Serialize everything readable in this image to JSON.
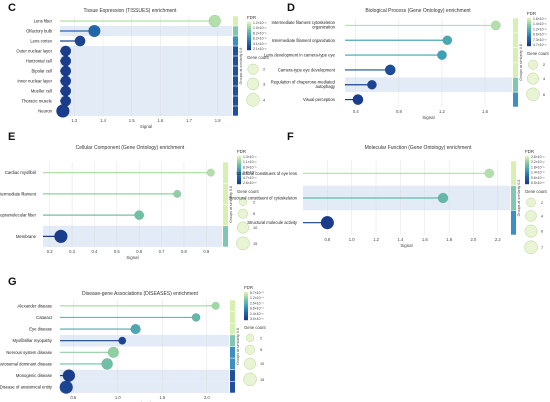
{
  "figure": {
    "scale_title": "FDR",
    "gene_count_title": "Gene count",
    "group_label": "Groups at similarity 0.8"
  },
  "chart_data": [
    {
      "letter": "C",
      "title": "Tissue Expression (TISSUES) enrichment",
      "type": "lollipop",
      "xlabel": "Signal",
      "xlim": [
        1.25,
        1.85
      ],
      "xticks": [
        "1.3",
        "1.4",
        "1.5",
        "1.6",
        "1.7",
        "1.8"
      ],
      "xtick_values": [
        1.3,
        1.4,
        1.5,
        1.6,
        1.7,
        1.8
      ],
      "categories": [
        "Lens fiber",
        "Olfactory bulb",
        "Lens cortex",
        "Outer nuclear layer",
        "Horizontal cell",
        "Bipolar cell",
        "Inner nuclear layer",
        "Mueller cell",
        "Thoracic muscle",
        "Neuron"
      ],
      "signal": [
        1.79,
        1.37,
        1.32,
        1.27,
        1.27,
        1.27,
        1.27,
        1.27,
        1.27,
        1.26
      ],
      "gene_count": [
        3,
        3,
        2,
        2,
        2,
        2,
        2,
        2,
        2,
        4
      ],
      "fdr_shade": [
        0.1,
        0.75,
        0.95,
        1,
        1,
        1,
        1,
        1,
        1,
        1
      ],
      "groups": [
        0,
        1,
        2,
        3,
        3,
        3,
        3,
        3,
        3,
        3
      ],
      "legend_fdr": [
        "1.2×10⁻²",
        "1.0×10⁻²",
        "8.2×10⁻³",
        "6.2×10⁻³",
        "4.1×10⁻³",
        "2.1×10⁻³"
      ],
      "legend_sizes": [
        2,
        3,
        4
      ],
      "legend_labels": [
        "2",
        "3",
        "4"
      ]
    },
    {
      "letter": "D",
      "title": "Biological Process (Gene Ontology) enrichment",
      "type": "lollipop",
      "xlabel": "Signal",
      "xlim": [
        0.3,
        1.85
      ],
      "xticks": [
        "0.4",
        "0.8",
        "1.2",
        "1.6"
      ],
      "xtick_values": [
        0.4,
        0.8,
        1.2,
        1.6
      ],
      "categories": [
        "Intermediate filament cytoskeleton organization",
        "Intermediate filament organization",
        "Lens development in camera-type eye",
        "Camera-type eye development",
        "Regulation of chaperone-mediated autophagy",
        "Visual perception"
      ],
      "signal": [
        1.7,
        1.25,
        1.2,
        0.72,
        0.55,
        0.42
      ],
      "gene_count": [
        2,
        2,
        2,
        3,
        2,
        3
      ],
      "fdr_shade": [
        0.1,
        0.45,
        0.5,
        0.9,
        0.95,
        1
      ],
      "groups": [
        0,
        0,
        0,
        0,
        1,
        2
      ],
      "legend_fdr": [
        "1.6×10⁻²",
        "1.4×10⁻²",
        "1.2×10⁻²",
        "9.6×10⁻³",
        "7.3×10⁻³",
        "4.7×10⁻³"
      ],
      "legend_sizes": [
        2,
        4,
        6
      ],
      "legend_labels": [
        "2",
        "4",
        "6"
      ]
    },
    {
      "letter": "E",
      "title": "Cellular Component (Gene Ontology) enrichment",
      "type": "lollipop",
      "xlabel": "Signal",
      "xlim": [
        0.17,
        0.97
      ],
      "xticks": [
        "0.2",
        "0.3",
        "0.4",
        "0.5",
        "0.6",
        "0.7",
        "0.8",
        "0.9"
      ],
      "xtick_values": [
        0.2,
        0.3,
        0.4,
        0.5,
        0.6,
        0.7,
        0.8,
        0.9
      ],
      "categories": [
        "Cardiac myofibril",
        "Intermediate filament",
        "Supramolecular fiber",
        "Membrane"
      ],
      "signal": [
        0.92,
        0.77,
        0.6,
        0.25
      ],
      "gene_count": [
        2,
        2,
        5,
        15
      ],
      "fdr_shade": [
        0.1,
        0.2,
        0.3,
        1
      ],
      "groups": [
        0,
        0,
        0,
        1
      ],
      "legend_fdr": [
        "1.3×10⁻²",
        "1.1×10⁻²",
        "8.9×10⁻³",
        "6.8×10⁻³",
        "4.7×10⁻³",
        "2.6×10⁻³"
      ],
      "legend_sizes": [
        2,
        5,
        10,
        15
      ],
      "legend_labels": [
        "2",
        "5",
        "10",
        "15"
      ]
    },
    {
      "letter": "F",
      "title": "Molecular Function (Gene Ontology) enrichment",
      "type": "lollipop",
      "xlabel": "Signal",
      "xlim": [
        0.6,
        2.3
      ],
      "xticks": [
        "0.8",
        "1.0",
        "1.2",
        "1.4",
        "1.6",
        "1.8",
        "2.0",
        "2.2"
      ],
      "xtick_values": [
        0.8,
        1.0,
        1.2,
        1.4,
        1.6,
        1.8,
        2.0,
        2.2
      ],
      "categories": [
        "Structural constituent of eye lens",
        "Structural constituent of cytoskeleton",
        "Structural molecule activity"
      ],
      "signal": [
        2.13,
        1.75,
        0.8
      ],
      "gene_count": [
        2,
        3,
        7
      ],
      "fdr_shade": [
        0.1,
        0.35,
        1
      ],
      "groups": [
        0,
        1,
        2
      ],
      "legend_fdr": [
        "2.6×10⁻²",
        "2.2×10⁻²",
        "1.8×10⁻²",
        "1.4×10⁻²",
        "9.6×10⁻³",
        "5.5×10⁻³"
      ],
      "legend_sizes": [
        2,
        4,
        6,
        7
      ],
      "legend_labels": [
        "2",
        "4",
        "6",
        "7"
      ]
    },
    {
      "letter": "G",
      "title": "Disease-gene Associations (DISEASES) enrichment",
      "type": "lollipop",
      "xlabel": "Signal",
      "xlim": [
        0.35,
        2.25
      ],
      "xticks": [
        "0.5",
        "1.0",
        "1.5",
        "2.0"
      ],
      "xtick_values": [
        0.5,
        1.0,
        1.5,
        2.0
      ],
      "categories": [
        "Alexander disease",
        "Cataract",
        "Eye disease",
        "Myofibrillar myopathy",
        "Nervous system disease",
        "Autosomal dominant disease",
        "Monogenic disease",
        "Disease of anatomical entity"
      ],
      "signal": [
        2.1,
        1.88,
        1.2,
        1.05,
        0.95,
        0.88,
        0.45,
        0.42
      ],
      "gene_count": [
        2,
        3,
        6,
        2,
        8,
        9,
        12,
        15
      ],
      "fdr_shade": [
        0.15,
        0.35,
        0.45,
        0.95,
        0.2,
        0.3,
        1,
        0.95
      ],
      "groups": [
        0,
        0,
        0,
        1,
        2,
        2,
        3,
        3
      ],
      "legend_fdr": [
        "5.7×10⁻⁵",
        "1.2×10⁻⁴",
        "2.9×10⁻⁴",
        "6.6×10⁻⁴",
        "1.4×10⁻³",
        "3.0×10⁻³"
      ],
      "legend_sizes": [
        2,
        5,
        10,
        15
      ],
      "legend_labels": [
        "2",
        "5",
        "10",
        "15"
      ]
    }
  ]
}
